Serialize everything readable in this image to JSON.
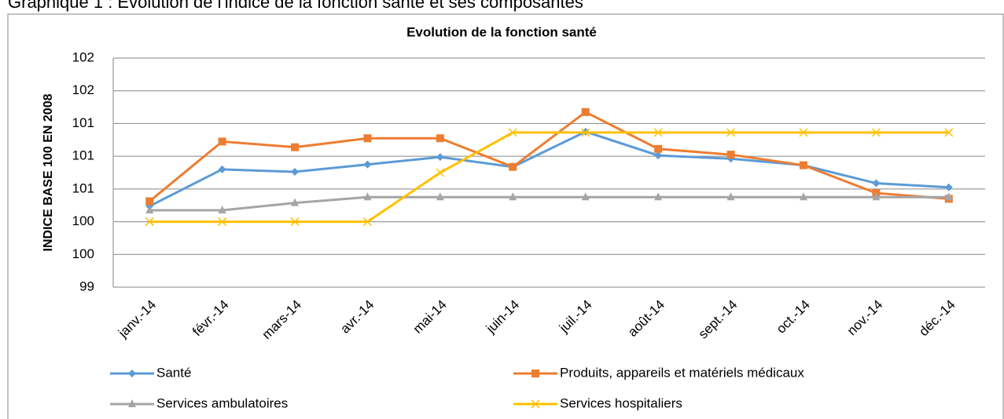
{
  "heading": "Graphique 1 : Evolution de l'indice  de la fonction santé et ses composantes",
  "chart_data": {
    "type": "line",
    "title": "Evolution de la fonction santé",
    "y_label": "INDICE BASE 100 EN 2008",
    "categories": [
      "janv.-14",
      "févr.-14",
      "mars-14",
      "avr.-14",
      "mai-14",
      "juin-14",
      "juil.-14",
      "août-14",
      "sept.-14",
      "oct.-14",
      "nov.-14",
      "déc.-14"
    ],
    "series": [
      {
        "name": "Santé",
        "color": "#5b9bd5",
        "marker": "diamond",
        "values": [
          100.39,
          100.84,
          100.81,
          100.9,
          100.99,
          100.87,
          101.3,
          101.01,
          100.97,
          100.89,
          100.67,
          100.62
        ]
      },
      {
        "name": "Produits, appareils et matériels médicaux",
        "color": "#ed7d31",
        "marker": "square",
        "values": [
          100.45,
          101.18,
          101.11,
          101.22,
          101.22,
          100.87,
          101.54,
          101.09,
          101.02,
          100.89,
          100.55,
          100.48
        ]
      },
      {
        "name": "Services ambulatoires",
        "color": "#a5a5a5",
        "marker": "triangle",
        "values": [
          100.34,
          100.34,
          100.43,
          100.5,
          100.5,
          100.5,
          100.5,
          100.5,
          100.5,
          100.5,
          100.5,
          100.5
        ]
      },
      {
        "name": "Services hospitaliers",
        "color": "#ffc000",
        "marker": "x",
        "values": [
          100.2,
          100.2,
          100.2,
          100.2,
          100.8,
          101.29,
          101.29,
          101.29,
          101.29,
          101.29,
          101.29,
          101.29
        ]
      }
    ],
    "ylim": [
      99.4,
      102.2
    ],
    "yticks": [
      {
        "value": 99.4,
        "label": "99"
      },
      {
        "value": 99.8,
        "label": "100"
      },
      {
        "value": 100.2,
        "label": "100"
      },
      {
        "value": 100.6,
        "label": "101"
      },
      {
        "value": 101.0,
        "label": "101"
      },
      {
        "value": 101.4,
        "label": "101"
      },
      {
        "value": 101.8,
        "label": "102"
      },
      {
        "value": 102.2,
        "label": "102"
      }
    ],
    "grid": true,
    "legend": "bottom"
  }
}
